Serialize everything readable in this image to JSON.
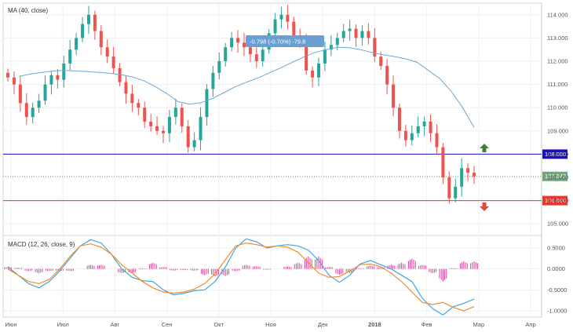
{
  "chart_data": [
    {
      "type": "candlestick",
      "indicator_label": "MA (40, close)",
      "ylim": [
        104.5,
        114.5
      ],
      "y_ticks": [
        "105.000",
        "106.000",
        "107.000",
        "108.000",
        "109.000",
        "110.000",
        "111.000",
        "112.000",
        "113.000",
        "114.000"
      ],
      "x_ticks": [
        "Июн",
        "Июл",
        "Авг",
        "Сен",
        "Окт",
        "Ноя",
        "Дек",
        "2018",
        "Фев",
        "Мар",
        "Апр"
      ],
      "series": [
        {
          "name": "price",
          "style": "candles",
          "up_color": "#26a69a",
          "down_color": "#ef5350",
          "close": [
            111.3,
            111.0,
            110.2,
            109.6,
            110.0,
            110.3,
            111.0,
            111.4,
            111.2,
            111.9,
            112.5,
            113.0,
            113.6,
            114.0,
            113.3,
            112.6,
            112.2,
            111.7,
            111.1,
            110.6,
            110.2,
            110.0,
            109.4,
            109.2,
            109.0,
            108.9,
            109.6,
            110.0,
            109.2,
            108.3,
            108.6,
            109.6,
            110.8,
            111.5,
            112.0,
            112.6,
            113.0,
            112.8,
            112.6,
            112.3,
            112.0,
            112.5,
            113.2,
            113.8,
            114.0,
            113.7,
            113.1,
            112.8,
            111.6,
            111.3,
            111.9,
            112.5,
            112.7,
            113.0,
            113.3,
            113.4,
            113.0,
            113.3,
            113.0,
            112.2,
            111.8,
            111.0,
            110.0,
            109.0,
            108.6,
            108.9,
            109.2,
            109.4,
            108.9,
            108.3,
            107.0,
            106.1,
            106.6,
            107.4,
            107.2,
            107.04
          ]
        },
        {
          "name": "MA (40, close)",
          "style": "line",
          "color": "#6aa8d8",
          "x_start_index": 1,
          "values": [
            111.35,
            111.45,
            111.52,
            111.58,
            111.6,
            111.58,
            111.55,
            111.52,
            111.48,
            111.42,
            111.32,
            111.15,
            110.9,
            110.6,
            110.25,
            110.15,
            110.22,
            110.4,
            110.65,
            110.9,
            111.1,
            111.28,
            111.5,
            111.72,
            111.95,
            112.18,
            112.38,
            112.5,
            112.6,
            112.58,
            112.5,
            112.38,
            112.28,
            112.2,
            112.1,
            111.95,
            111.6,
            111.25,
            110.7,
            110.0,
            109.15
          ]
        }
      ],
      "levels": [
        {
          "value": 108.0,
          "label": "108.000",
          "color": "#1a0fc7"
        },
        {
          "value": 106.0,
          "label": "106.000",
          "color": "#e8372f"
        },
        {
          "value": 107.043,
          "label": "107.043",
          "color": "#6fa878",
          "style": "dotted"
        }
      ],
      "measure_label": "-0.798 (-0.70%) -79.8",
      "arrows": [
        {
          "direction": "up",
          "color": "#3b7f3f",
          "at_value": 108.25
        },
        {
          "direction": "down",
          "color": "#e24a3a",
          "at_value": 105.75
        }
      ]
    },
    {
      "type": "line",
      "indicator_label": "MACD (12, 26, close, 9)",
      "ylim": [
        -1.15,
        0.8
      ],
      "y_ticks": [
        "0.5000",
        "0.0000",
        "-0.5000",
        "-1.0000"
      ],
      "series": [
        {
          "name": "macd",
          "color": "#3da6e0",
          "values": [
            0.05,
            -0.15,
            -0.35,
            -0.45,
            -0.3,
            -0.05,
            0.25,
            0.55,
            0.7,
            0.62,
            0.35,
            0.0,
            -0.2,
            -0.28,
            -0.3,
            -0.5,
            -0.62,
            -0.58,
            -0.52,
            -0.5,
            -0.3,
            0.05,
            0.5,
            0.72,
            0.65,
            0.5,
            0.55,
            0.58,
            0.55,
            0.45,
            0.2,
            -0.15,
            -0.32,
            -0.15,
            0.12,
            0.2,
            0.1,
            0.0,
            -0.15,
            -0.3,
            -0.7,
            -0.95,
            -1.1,
            -0.9,
            -0.82,
            -0.72
          ]
        },
        {
          "name": "signal",
          "color": "#f28c28",
          "values": [
            0.0,
            -0.15,
            -0.3,
            -0.35,
            -0.25,
            0.0,
            0.3,
            0.55,
            0.6,
            0.52,
            0.35,
            0.1,
            -0.1,
            -0.3,
            -0.45,
            -0.55,
            -0.58,
            -0.55,
            -0.48,
            -0.35,
            -0.12,
            0.22,
            0.55,
            0.62,
            0.58,
            0.52,
            0.55,
            0.52,
            0.4,
            0.15,
            -0.1,
            -0.2,
            -0.18,
            -0.05,
            0.1,
            0.12,
            0.05,
            -0.1,
            -0.3,
            -0.55,
            -0.8,
            -0.85,
            -0.8,
            -0.92,
            -1.0,
            -0.9
          ]
        },
        {
          "name": "histogram",
          "color": "#e0409a",
          "values": [
            0.05,
            0.03,
            -0.05,
            -0.1,
            -0.05,
            -0.05,
            -0.05,
            0.0,
            0.1,
            0.1,
            0.0,
            -0.1,
            -0.1,
            0.02,
            0.15,
            0.05,
            -0.04,
            -0.03,
            -0.04,
            -0.15,
            -0.18,
            -0.17,
            -0.05,
            0.1,
            0.07,
            -0.02,
            0.0,
            0.06,
            0.15,
            0.3,
            0.3,
            0.05,
            -0.14,
            -0.1,
            0.02,
            0.08,
            0.05,
            0.1,
            0.15,
            0.25,
            0.1,
            -0.1,
            -0.3,
            0.02,
            0.18,
            0.18
          ]
        }
      ]
    }
  ]
}
